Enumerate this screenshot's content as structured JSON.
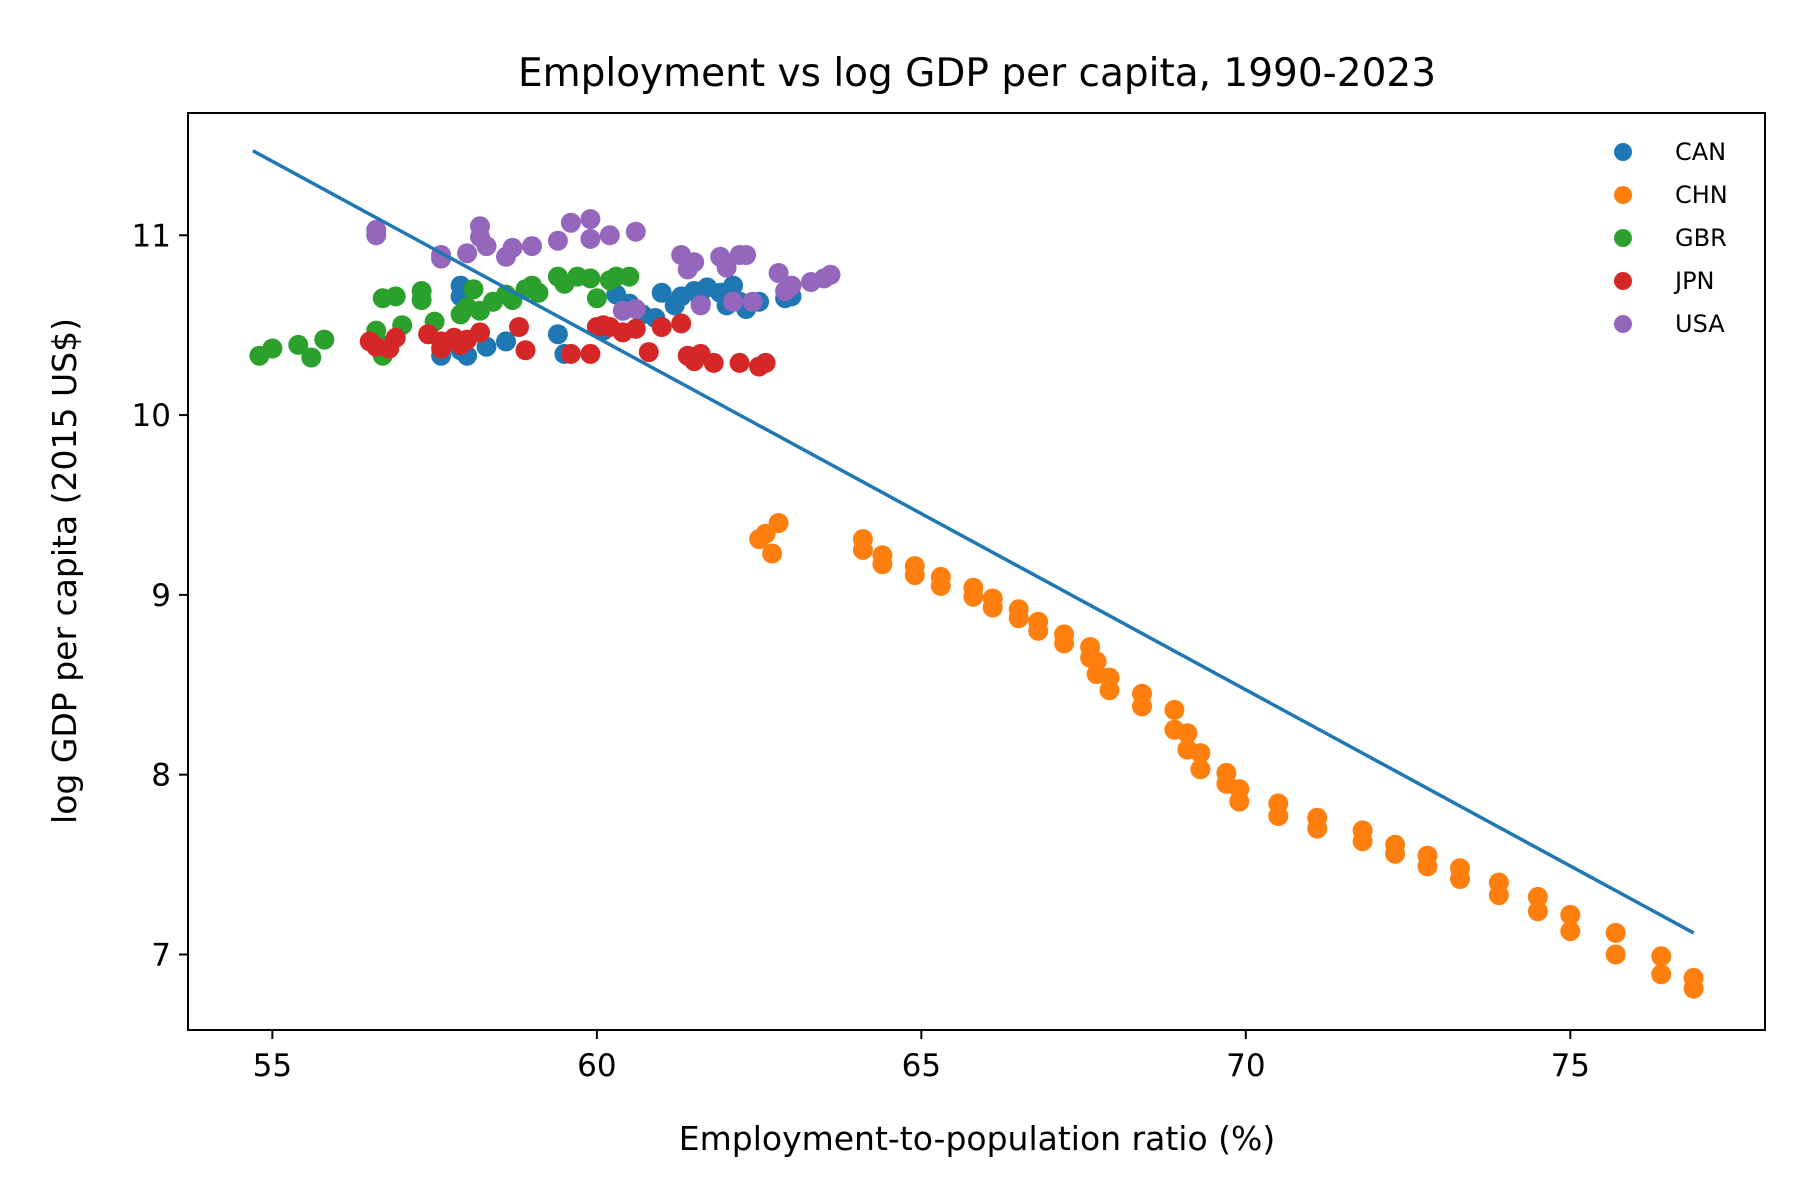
{
  "chart_data": {
    "type": "scatter",
    "title": "Employment vs log GDP per capita, 1990-2023",
    "xlabel": "Employment-to-population ratio (%)",
    "ylabel": "log GDP per capita (2015 US$)",
    "xlim": [
      53.7,
      78.0
    ],
    "ylim": [
      6.58,
      11.68
    ],
    "xticks": [
      55,
      60,
      65,
      70,
      75
    ],
    "yticks": [
      7,
      8,
      9,
      10,
      11
    ],
    "grid": false,
    "legend_position": "top-right",
    "series": [
      {
        "name": "CAN",
        "color": "#1f77b4",
        "points": [
          [
            57.6,
            10.33
          ],
          [
            57.9,
            10.36
          ],
          [
            58.0,
            10.33
          ],
          [
            58.3,
            10.38
          ],
          [
            58.6,
            10.41
          ],
          [
            59.4,
            10.45
          ],
          [
            59.5,
            10.34
          ],
          [
            57.9,
            10.72
          ],
          [
            57.9,
            10.66
          ],
          [
            60.1,
            10.47
          ],
          [
            60.3,
            10.67
          ],
          [
            60.5,
            10.62
          ],
          [
            60.7,
            10.56
          ],
          [
            60.9,
            10.54
          ],
          [
            61.0,
            10.68
          ],
          [
            61.3,
            10.66
          ],
          [
            61.5,
            10.69
          ],
          [
            61.7,
            10.71
          ],
          [
            61.9,
            10.68
          ],
          [
            62.0,
            10.61
          ],
          [
            62.1,
            10.72
          ],
          [
            62.2,
            10.63
          ],
          [
            62.3,
            10.59
          ],
          [
            62.5,
            10.63
          ],
          [
            62.9,
            10.65
          ],
          [
            63.0,
            10.66
          ],
          [
            61.6,
            10.62
          ],
          [
            61.2,
            10.61
          ]
        ]
      },
      {
        "name": "CHN",
        "color": "#ff7f0e",
        "points": [
          [
            76.9,
            6.81
          ],
          [
            76.9,
            6.87
          ],
          [
            76.4,
            6.89
          ],
          [
            76.4,
            6.99
          ],
          [
            75.7,
            7.0
          ],
          [
            75.7,
            7.12
          ],
          [
            75.0,
            7.13
          ],
          [
            75.0,
            7.22
          ],
          [
            74.5,
            7.24
          ],
          [
            74.5,
            7.32
          ],
          [
            73.9,
            7.33
          ],
          [
            73.9,
            7.4
          ],
          [
            73.3,
            7.42
          ],
          [
            73.3,
            7.48
          ],
          [
            72.8,
            7.49
          ],
          [
            72.8,
            7.55
          ],
          [
            72.3,
            7.56
          ],
          [
            72.3,
            7.61
          ],
          [
            71.8,
            7.63
          ],
          [
            71.8,
            7.69
          ],
          [
            71.1,
            7.7
          ],
          [
            71.1,
            7.76
          ],
          [
            70.5,
            7.77
          ],
          [
            70.5,
            7.84
          ],
          [
            69.9,
            7.85
          ],
          [
            69.9,
            7.92
          ],
          [
            69.7,
            7.95
          ],
          [
            69.7,
            8.01
          ],
          [
            69.3,
            8.03
          ],
          [
            69.3,
            8.12
          ],
          [
            69.1,
            8.14
          ],
          [
            69.1,
            8.23
          ],
          [
            68.9,
            8.25
          ],
          [
            68.9,
            8.36
          ],
          [
            68.4,
            8.38
          ],
          [
            68.4,
            8.45
          ],
          [
            67.9,
            8.47
          ],
          [
            67.9,
            8.54
          ],
          [
            67.7,
            8.56
          ],
          [
            67.7,
            8.63
          ],
          [
            67.6,
            8.65
          ],
          [
            67.6,
            8.71
          ],
          [
            67.2,
            8.73
          ],
          [
            67.2,
            8.78
          ],
          [
            66.8,
            8.8
          ],
          [
            66.8,
            8.85
          ],
          [
            66.5,
            8.87
          ],
          [
            66.5,
            8.92
          ],
          [
            66.1,
            8.93
          ],
          [
            66.1,
            8.98
          ],
          [
            65.8,
            8.99
          ],
          [
            65.8,
            9.04
          ],
          [
            65.3,
            9.05
          ],
          [
            65.3,
            9.1
          ],
          [
            64.9,
            9.11
          ],
          [
            64.9,
            9.16
          ],
          [
            64.4,
            9.17
          ],
          [
            64.4,
            9.22
          ],
          [
            64.1,
            9.25
          ],
          [
            64.1,
            9.31
          ],
          [
            62.7,
            9.23
          ],
          [
            62.8,
            9.4
          ],
          [
            62.6,
            9.34
          ],
          [
            62.5,
            9.31
          ]
        ]
      },
      {
        "name": "GBR",
        "color": "#2ca02c",
        "points": [
          [
            54.8,
            10.33
          ],
          [
            55.0,
            10.37
          ],
          [
            55.4,
            10.39
          ],
          [
            55.6,
            10.32
          ],
          [
            55.8,
            10.42
          ],
          [
            56.6,
            10.47
          ],
          [
            56.7,
            10.33
          ],
          [
            56.8,
            10.39
          ],
          [
            56.7,
            10.65
          ],
          [
            56.9,
            10.66
          ],
          [
            57.0,
            10.5
          ],
          [
            57.3,
            10.69
          ],
          [
            57.3,
            10.64
          ],
          [
            57.5,
            10.52
          ],
          [
            57.9,
            10.56
          ],
          [
            58.0,
            10.6
          ],
          [
            58.1,
            10.7
          ],
          [
            58.4,
            10.63
          ],
          [
            58.6,
            10.67
          ],
          [
            58.7,
            10.64
          ],
          [
            58.9,
            10.7
          ],
          [
            59.0,
            10.72
          ],
          [
            59.4,
            10.77
          ],
          [
            59.5,
            10.73
          ],
          [
            59.7,
            10.77
          ],
          [
            59.9,
            10.76
          ],
          [
            60.0,
            10.65
          ],
          [
            60.2,
            10.75
          ],
          [
            60.3,
            10.77
          ],
          [
            60.5,
            10.77
          ],
          [
            59.1,
            10.68
          ],
          [
            58.2,
            10.58
          ]
        ]
      },
      {
        "name": "JPN",
        "color": "#d62728",
        "points": [
          [
            56.5,
            10.41
          ],
          [
            56.6,
            10.38
          ],
          [
            56.8,
            10.37
          ],
          [
            56.9,
            10.43
          ],
          [
            57.4,
            10.45
          ],
          [
            57.6,
            10.41
          ],
          [
            57.6,
            10.37
          ],
          [
            57.8,
            10.43
          ],
          [
            57.9,
            10.39
          ],
          [
            58.0,
            10.42
          ],
          [
            58.2,
            10.46
          ],
          [
            58.8,
            10.49
          ],
          [
            58.9,
            10.36
          ],
          [
            59.6,
            10.34
          ],
          [
            59.9,
            10.34
          ],
          [
            60.0,
            10.49
          ],
          [
            60.2,
            10.49
          ],
          [
            60.4,
            10.46
          ],
          [
            60.6,
            10.48
          ],
          [
            60.8,
            10.35
          ],
          [
            61.0,
            10.49
          ],
          [
            61.3,
            10.51
          ],
          [
            61.4,
            10.33
          ],
          [
            61.6,
            10.34
          ],
          [
            61.5,
            10.3
          ],
          [
            61.8,
            10.29
          ],
          [
            62.2,
            10.29
          ],
          [
            62.5,
            10.27
          ],
          [
            62.6,
            10.29
          ],
          [
            60.1,
            10.5
          ]
        ]
      },
      {
        "name": "USA",
        "color": "#9467bd",
        "points": [
          [
            56.6,
            11.03
          ],
          [
            56.6,
            11.0
          ],
          [
            57.6,
            10.89
          ],
          [
            57.6,
            10.87
          ],
          [
            58.0,
            10.9
          ],
          [
            58.2,
            11.05
          ],
          [
            58.2,
            10.99
          ],
          [
            58.3,
            10.94
          ],
          [
            58.6,
            10.88
          ],
          [
            58.7,
            10.93
          ],
          [
            59.0,
            10.94
          ],
          [
            59.4,
            10.97
          ],
          [
            59.6,
            11.07
          ],
          [
            59.9,
            11.09
          ],
          [
            59.9,
            10.98
          ],
          [
            60.2,
            11.0
          ],
          [
            60.4,
            10.58
          ],
          [
            60.6,
            10.59
          ],
          [
            60.6,
            11.02
          ],
          [
            61.3,
            10.89
          ],
          [
            61.4,
            10.81
          ],
          [
            61.5,
            10.85
          ],
          [
            61.6,
            10.61
          ],
          [
            61.9,
            10.88
          ],
          [
            62.0,
            10.82
          ],
          [
            62.1,
            10.63
          ],
          [
            62.2,
            10.89
          ],
          [
            62.3,
            10.89
          ],
          [
            62.4,
            10.63
          ],
          [
            62.8,
            10.79
          ],
          [
            62.9,
            10.69
          ],
          [
            63.0,
            10.72
          ],
          [
            63.3,
            10.74
          ],
          [
            63.5,
            10.76
          ],
          [
            63.6,
            10.78
          ]
        ]
      }
    ],
    "fit_line": {
      "color": "#1f77b4",
      "points": [
        [
          54.7,
          11.47
        ],
        [
          76.9,
          7.12
        ]
      ]
    }
  }
}
